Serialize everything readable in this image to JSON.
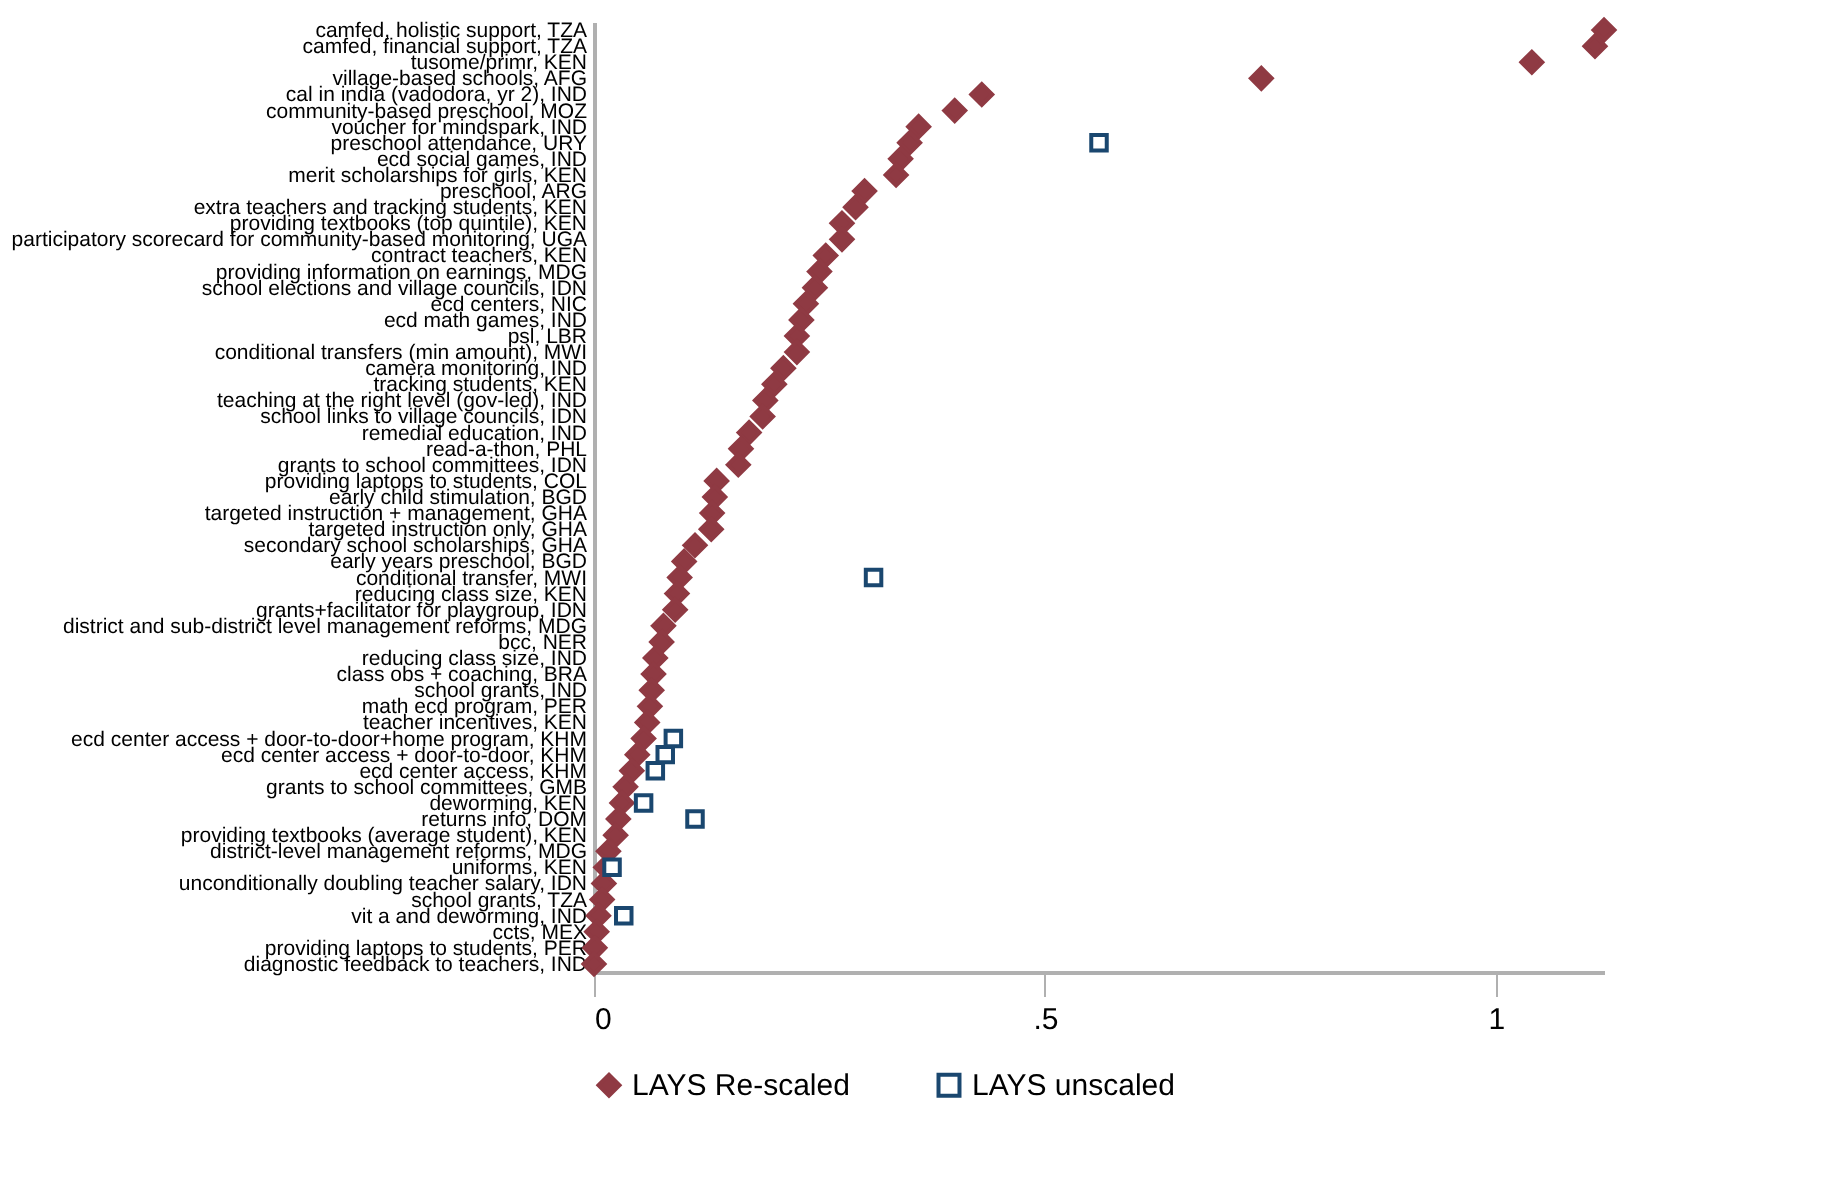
{
  "chart_data": {
    "type": "scatter",
    "orientation": "horizontal",
    "categories": [
      "camfed, holistic support, TZA",
      "camfed, financial support, TZA",
      "tusome/primr, KEN",
      "village-based schools, AFG",
      "cal in india (vadodora, yr 2), IND",
      "community-based preschool, MOZ",
      "voucher for mindspark, IND",
      "preschool attendance, URY",
      "ecd social games, IND",
      "merit scholarships for girls, KEN",
      "preschool, ARG",
      "extra teachers and tracking students, KEN",
      "providing textbooks (top quintile), KEN",
      "participatory scorecard for community-based monitoring, UGA",
      "contract teachers, KEN",
      "providing information on earnings, MDG",
      "school elections and village councils, IDN",
      "ecd centers, NIC",
      "ecd math games, IND",
      "psl, LBR",
      "conditional transfers (min amount), MWI",
      "camera monitoring, IND",
      "tracking students, KEN",
      "teaching at the right level (gov-led), IND",
      "school links to village councils, IDN",
      "remedial education, IND",
      "read-a-thon, PHL",
      "grants to school committees, IDN",
      "providing laptops to students, COL",
      "early child stimulation, BGD",
      "targeted instruction + management, GHA",
      "targeted instruction only, GHA",
      "secondary school scholarships, GHA",
      "early years preschool, BGD",
      "conditional transfer, MWI",
      "reducing class size, KEN",
      "grants+facilitator for playgroup, IDN",
      "district and sub-district level management reforms, MDG",
      "bcc, NER",
      "reducing class size, IND",
      "class obs + coaching, BRA",
      "school grants, IND",
      "math ecd program, PER",
      "teacher incentives, KEN",
      "ecd center access + door-to-door+home program, KHM",
      "ecd center access + door-to-door, KHM",
      "ecd center access, KHM",
      "grants to school committees, GMB",
      "deworming, KEN",
      "returns info, DOM",
      "providing textbooks (average student), KEN",
      "district-level management reforms, MDG",
      "uniforms, KEN",
      "unconditionally doubling teacher salary, IDN",
      "school grants, TZA",
      "vit a and deworming, IND",
      "ccts, MEX",
      "providing laptops to students, PER",
      "diagnostic feedback to teachers, IND"
    ],
    "series": [
      {
        "name": "LAYS Re-scaled",
        "color": "#8f3a43",
        "marker": "diamond",
        "values": [
          1.12,
          1.11,
          1.04,
          0.74,
          0.43,
          0.4,
          0.36,
          0.35,
          0.34,
          0.335,
          0.3,
          0.29,
          0.275,
          0.275,
          0.257,
          0.25,
          0.245,
          0.235,
          0.23,
          0.225,
          0.225,
          0.21,
          0.2,
          0.19,
          0.187,
          0.172,
          0.163,
          0.16,
          0.136,
          0.134,
          0.131,
          0.13,
          0.112,
          0.1,
          0.095,
          0.092,
          0.09,
          0.077,
          0.075,
          0.068,
          0.066,
          0.064,
          0.062,
          0.059,
          0.055,
          0.048,
          0.042,
          0.035,
          0.031,
          0.027,
          0.024,
          0.016,
          0.013,
          0.011,
          0.009,
          0.005,
          0.003,
          0.001,
          0.0
        ]
      },
      {
        "name": "LAYS unscaled",
        "color": "#1a476f",
        "marker": "square",
        "values": [
          null,
          null,
          null,
          null,
          null,
          null,
          null,
          0.56,
          null,
          null,
          null,
          null,
          null,
          null,
          null,
          null,
          null,
          null,
          null,
          null,
          null,
          null,
          null,
          null,
          null,
          null,
          null,
          null,
          null,
          null,
          null,
          null,
          null,
          null,
          0.31,
          null,
          null,
          null,
          null,
          null,
          null,
          null,
          null,
          null,
          0.088,
          0.079,
          0.068,
          null,
          0.055,
          0.112,
          null,
          null,
          0.02,
          null,
          null,
          0.033,
          null,
          null,
          null
        ]
      }
    ],
    "xlim": [
      0,
      1.12
    ],
    "xticks": [
      0,
      {
        "value": 0.5,
        "label": ".5"
      },
      1
    ],
    "grid": false,
    "legend": "bottom"
  }
}
